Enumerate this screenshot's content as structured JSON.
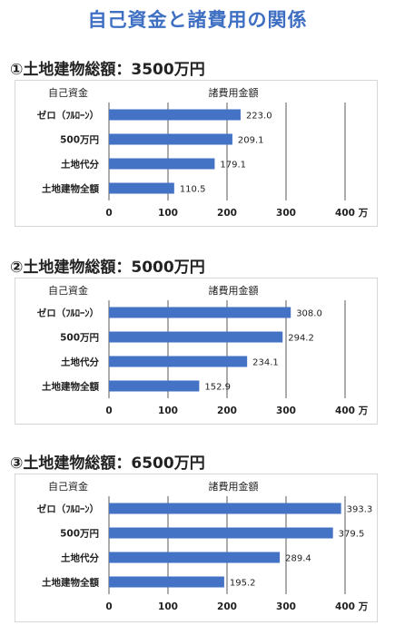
{
  "title": "自己資金と諸費用の関係",
  "colors": {
    "title": "#3f6fc3",
    "bar": "#4472c4",
    "grid": "#595959"
  },
  "chart_data": [
    {
      "type": "bar",
      "orientation": "horizontal",
      "title": "①土地建物総額：3500万円",
      "ylabel": "自己資金",
      "xlabel": "諸費用金額",
      "unit": "万",
      "categories": [
        "ゼロ（ﾌﾙﾛｰﾝ）",
        "500万円",
        "土地代分",
        "土地建物全額"
      ],
      "values": [
        223.0,
        209.1,
        179.1,
        110.5
      ],
      "value_labels": [
        "223.0",
        "209.1",
        "179.1",
        "110.5"
      ],
      "xlim": [
        0,
        400
      ],
      "ticks": [
        "0",
        "100",
        "200",
        "300",
        "400"
      ],
      "grid": true
    },
    {
      "type": "bar",
      "orientation": "horizontal",
      "title": "②土地建物総額：5000万円",
      "ylabel": "自己資金",
      "xlabel": "諸費用金額",
      "unit": "万",
      "categories": [
        "ゼロ（ﾌﾙﾛｰﾝ）",
        "500万円",
        "土地代分",
        "土地建物全額"
      ],
      "values": [
        308.0,
        294.2,
        234.1,
        152.9
      ],
      "value_labels": [
        "308.0",
        "294.2",
        "234.1",
        "152.9"
      ],
      "xlim": [
        0,
        400
      ],
      "ticks": [
        "0",
        "100",
        "200",
        "300",
        "400"
      ],
      "grid": true
    },
    {
      "type": "bar",
      "orientation": "horizontal",
      "title": "③土地建物総額：6500万円",
      "ylabel": "自己資金",
      "xlabel": "諸費用金額",
      "unit": "万",
      "categories": [
        "ゼロ（ﾌﾙﾛｰﾝ）",
        "500万円",
        "土地代分",
        "土地建物全額"
      ],
      "values": [
        393.3,
        379.5,
        289.4,
        195.2
      ],
      "value_labels": [
        "393.3",
        "379.5",
        "289.4",
        "195.2"
      ],
      "xlim": [
        0,
        400
      ],
      "ticks": [
        "0",
        "100",
        "200",
        "300",
        "400"
      ],
      "grid": true
    }
  ]
}
